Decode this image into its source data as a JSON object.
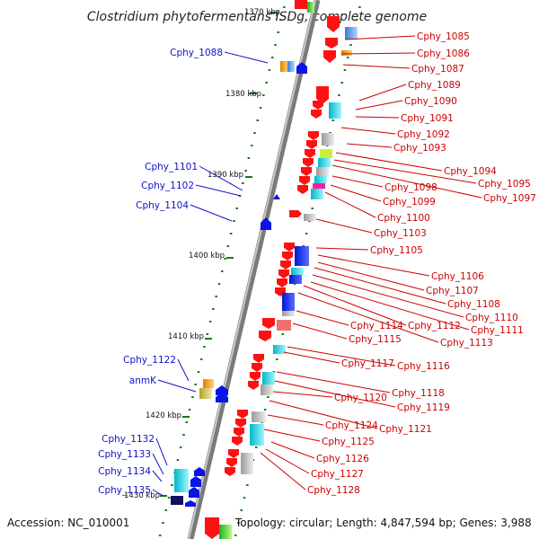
{
  "title": "Clostridium phytofermentans ISDg, complete genome",
  "footer": {
    "accession": "Accession: NC_010001",
    "info": "Topology: circular; Length: 4,847,594 bp; Genes: 3,988"
  },
  "scale_labels": [
    "1370 kbp",
    "1380 kbp",
    "1390 kbp",
    "1400 kbp",
    "1410 kbp",
    "1420 kbp",
    "1430 kbp"
  ],
  "genes_left": [
    "Cphy_1088",
    "Cphy_1101",
    "Cphy_1102",
    "Cphy_1104",
    "Cphy_1122",
    "anmK",
    "Cphy_1132",
    "Cphy_1133",
    "Cphy_1134",
    "Cphy_1135"
  ],
  "genes_right": [
    "Cphy_1085",
    "Cphy_1086",
    "Cphy_1087",
    "Cphy_1089",
    "Cphy_1090",
    "Cphy_1091",
    "Cphy_1092",
    "Cphy_1093",
    "Cphy_1094",
    "Cphy_1095",
    "Cphy_1097",
    "Cphy_1098",
    "Cphy_1099",
    "Cphy_1100",
    "Cphy_1103",
    "Cphy_1105",
    "Cphy_1106",
    "Cphy_1107",
    "Cphy_1108",
    "Cphy_1110",
    "Cphy_1111",
    "Cphy_1112",
    "Cphy_1113",
    "Cphy_1114",
    "Cphy_1115",
    "Cphy_1116",
    "Cphy_1117",
    "Cphy_1118",
    "Cphy_1119",
    "Cphy_1120",
    "Cphy_1121",
    "Cphy_1124",
    "Cphy_1125",
    "Cphy_1126",
    "Cphy_1127",
    "Cphy_1128"
  ],
  "colors": {
    "left_label": "#1111cc",
    "right_label": "#cc0000",
    "forward_gene": "#ff1111",
    "reverse_gene": "#0a14e6",
    "backbone": "#888888",
    "tick": "#157a15"
  }
}
